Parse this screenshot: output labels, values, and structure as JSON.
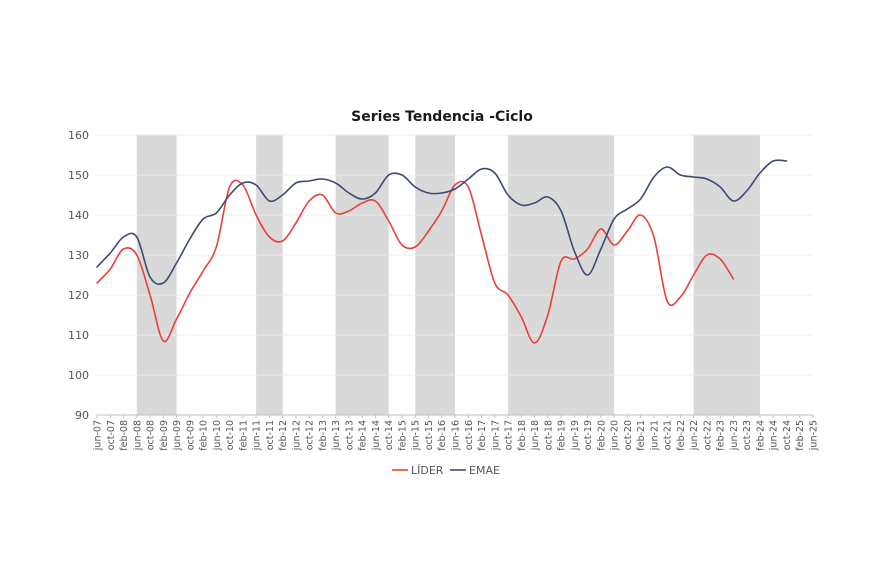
{
  "chart_data": {
    "type": "line",
    "title": "Series Tendencia -Ciclo",
    "xlabel": "",
    "ylabel": "",
    "ylim": [
      90,
      160
    ],
    "yticks": [
      90,
      100,
      110,
      120,
      130,
      140,
      150,
      160
    ],
    "xtick_labels": [
      "jun-07",
      "oct-07",
      "feb-08",
      "jun-08",
      "oct-08",
      "feb-09",
      "jun-09",
      "oct-09",
      "feb-10",
      "jun-10",
      "oct-10",
      "feb-11",
      "jun-11",
      "oct-11",
      "feb-12",
      "jun-12",
      "oct-12",
      "feb-13",
      "jun-13",
      "oct-13",
      "feb-14",
      "jun-14",
      "oct-14",
      "feb-15",
      "jun-15",
      "oct-15",
      "feb-16",
      "jun-16",
      "oct-16",
      "feb-17",
      "jun-17",
      "oct-17",
      "feb-18",
      "jun-18",
      "oct-18",
      "feb-19",
      "jun-19",
      "oct-19",
      "feb-20",
      "jun-20",
      "oct-20",
      "feb-21",
      "jun-21",
      "oct-21",
      "feb-22",
      "jun-22",
      "oct-22",
      "feb-23",
      "jun-23",
      "oct-23",
      "feb-24",
      "jun-24",
      "oct-24",
      "feb-25",
      "jun-25"
    ],
    "grid": "horizontal",
    "legend": "bottom-center",
    "recessions": [
      {
        "start": "jun-08",
        "end": "jun-09"
      },
      {
        "start": "jun-11",
        "end": "feb-12"
      },
      {
        "start": "jun-13",
        "end": "oct-14"
      },
      {
        "start": "jun-15",
        "end": "jun-16"
      },
      {
        "start": "oct-17",
        "end": "jun-20"
      },
      {
        "start": "jun-22",
        "end": "feb-24"
      }
    ],
    "recession_color": "#d9d9d9",
    "series": [
      {
        "name": "LÍDER",
        "color": "#e8413c",
        "points": [
          [
            "jun-07",
            123
          ],
          [
            "oct-07",
            126.5
          ],
          [
            "feb-08",
            131.5
          ],
          [
            "jun-08",
            130
          ],
          [
            "oct-08",
            120
          ],
          [
            "feb-09",
            108.5
          ],
          [
            "jun-09",
            114
          ],
          [
            "oct-09",
            120.5
          ],
          [
            "feb-10",
            126
          ],
          [
            "jun-10",
            132
          ],
          [
            "oct-10",
            147
          ],
          [
            "feb-11",
            147.5
          ],
          [
            "jun-11",
            140
          ],
          [
            "oct-11",
            134.5
          ],
          [
            "feb-12",
            133.5
          ],
          [
            "jun-12",
            138
          ],
          [
            "oct-12",
            143.5
          ],
          [
            "feb-13",
            145
          ],
          [
            "jun-13",
            140.5
          ],
          [
            "oct-13",
            141
          ],
          [
            "feb-14",
            143
          ],
          [
            "jun-14",
            143.5
          ],
          [
            "oct-14",
            138.5
          ],
          [
            "feb-15",
            132.5
          ],
          [
            "jun-15",
            132
          ],
          [
            "oct-15",
            136
          ],
          [
            "feb-16",
            141
          ],
          [
            "jun-16",
            147.5
          ],
          [
            "oct-16",
            147
          ],
          [
            "feb-17",
            135
          ],
          [
            "jun-17",
            123
          ],
          [
            "oct-17",
            120
          ],
          [
            "feb-18",
            114.5
          ],
          [
            "jun-18",
            108
          ],
          [
            "oct-18",
            115
          ],
          [
            "feb-19",
            128.5
          ],
          [
            "jun-19",
            129
          ],
          [
            "oct-19",
            131.5
          ],
          [
            "feb-20",
            136.5
          ],
          [
            "jun-20",
            132.5
          ],
          [
            "oct-20",
            136
          ],
          [
            "feb-21",
            140
          ],
          [
            "jun-21",
            134.5
          ],
          [
            "oct-21",
            118.5
          ],
          [
            "feb-22",
            119.5
          ],
          [
            "jun-22",
            125
          ],
          [
            "oct-22",
            130
          ],
          [
            "feb-23",
            129
          ],
          [
            "jun-23",
            124
          ]
        ]
      },
      {
        "name": "EMAE",
        "color": "#3d4a73",
        "points": [
          [
            "jun-07",
            127
          ],
          [
            "oct-07",
            130.5
          ],
          [
            "feb-08",
            134.5
          ],
          [
            "jun-08",
            134.5
          ],
          [
            "oct-08",
            124.5
          ],
          [
            "feb-09",
            123
          ],
          [
            "jun-09",
            128
          ],
          [
            "oct-09",
            134
          ],
          [
            "feb-10",
            139
          ],
          [
            "jun-10",
            140.5
          ],
          [
            "oct-10",
            145
          ],
          [
            "feb-11",
            148
          ],
          [
            "jun-11",
            147.5
          ],
          [
            "oct-11",
            143.5
          ],
          [
            "feb-12",
            145
          ],
          [
            "jun-12",
            148
          ],
          [
            "oct-12",
            148.5
          ],
          [
            "feb-13",
            149
          ],
          [
            "jun-13",
            148
          ],
          [
            "oct-13",
            145.5
          ],
          [
            "feb-14",
            144
          ],
          [
            "jun-14",
            145.5
          ],
          [
            "oct-14",
            150
          ],
          [
            "feb-15",
            150
          ],
          [
            "jun-15",
            147
          ],
          [
            "oct-15",
            145.5
          ],
          [
            "feb-16",
            145.5
          ],
          [
            "jun-16",
            146.5
          ],
          [
            "oct-16",
            149
          ],
          [
            "feb-17",
            151.5
          ],
          [
            "jun-17",
            150.5
          ],
          [
            "oct-17",
            145
          ],
          [
            "feb-18",
            142.5
          ],
          [
            "jun-18",
            143
          ],
          [
            "oct-18",
            144.5
          ],
          [
            "feb-19",
            141
          ],
          [
            "jun-19",
            131
          ],
          [
            "oct-19",
            125
          ],
          [
            "feb-20",
            131.5
          ],
          [
            "jun-20",
            139
          ],
          [
            "oct-20",
            141.5
          ],
          [
            "feb-21",
            144
          ],
          [
            "jun-21",
            149.5
          ],
          [
            "oct-21",
            152
          ],
          [
            "feb-22",
            150
          ],
          [
            "jun-22",
            149.5
          ],
          [
            "oct-22",
            149
          ],
          [
            "feb-23",
            147
          ],
          [
            "jun-23",
            143.5
          ],
          [
            "oct-23",
            146
          ],
          [
            "feb-24",
            150.5
          ],
          [
            "jun-24",
            153.5
          ],
          [
            "oct-24",
            153.5
          ]
        ]
      }
    ]
  }
}
